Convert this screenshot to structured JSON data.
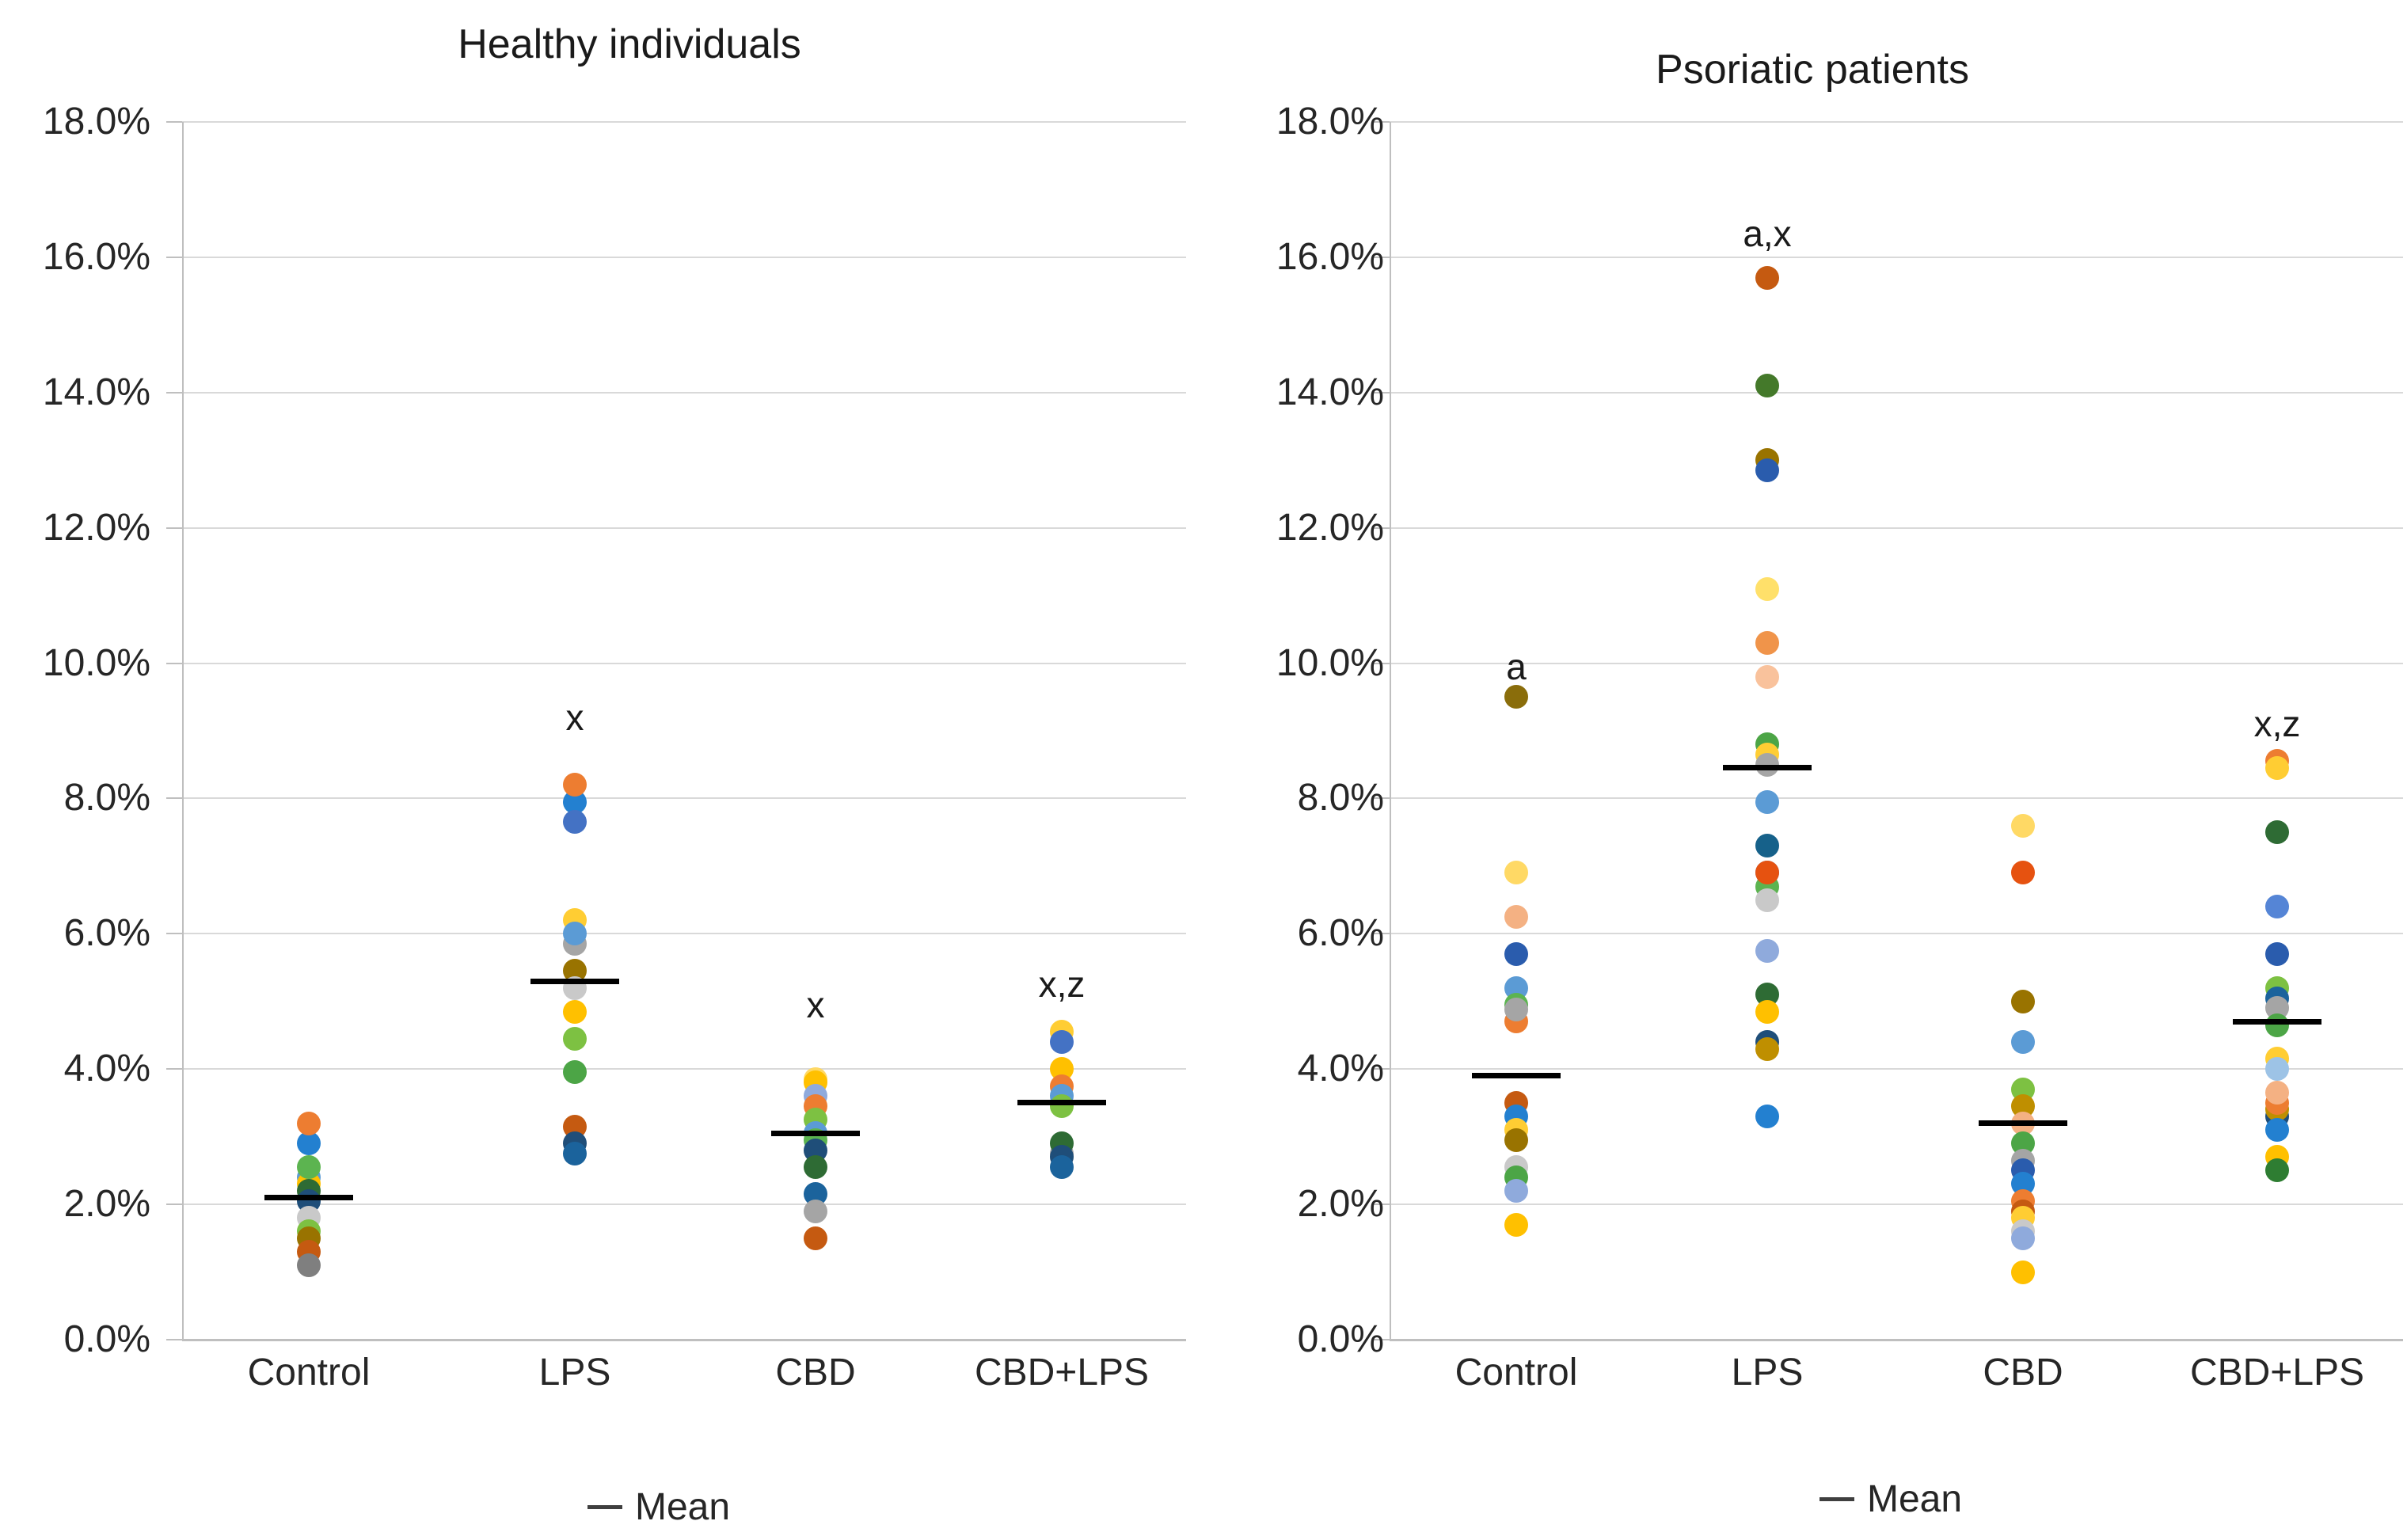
{
  "page": {
    "background": "#FFFFFF"
  },
  "colors": {
    "orange": "#ED7D31",
    "amber_orange": "#F0944A",
    "orange_red": "#E65210",
    "rust": "#C55A11",
    "salmon": "#F4B183",
    "light_salmon": "#F9C29C",
    "gold": "#FFC000",
    "light_gold": "#FFCD33",
    "light_yellow": "#FFD965",
    "pale_yellow": "#FFE06A",
    "olive": "#997300",
    "dark_gold": "#BF8F00",
    "brown_gold": "#8A6D0B",
    "bright_blue": "#2380D0",
    "light_blue": "#5B9BD5",
    "muted_blue": "#4472C4",
    "cornflower": "#5585D6",
    "royal_blue": "#2A5CAD",
    "navy": "#1F4E79",
    "steel_blue": "#1B639C",
    "teal_blue": "#16618A",
    "periwinkle": "#8FAADC",
    "pale_blue": "#9DC3E6",
    "green": "#5CB450",
    "green2": "#4CA546",
    "light_green": "#7DC142",
    "dark_green": "#2E6B34",
    "dark_green2": "#2E7D32",
    "forest": "#44792A",
    "gray": "#A5A5A5",
    "light_gray": "#C9C9C9",
    "dark_gray": "#7F7F7F"
  },
  "chart_data": [
    {
      "type": "scatter",
      "title": "Healthy individuals",
      "legend_label": "Mean",
      "xlabel": "",
      "ylabel": "",
      "ylim": [
        0,
        18
      ],
      "ytick_step": 2,
      "grid": true,
      "legend_position": "bottom",
      "ytick_labels": [
        "0.0%",
        "2.0%",
        "4.0%",
        "6.0%",
        "8.0%",
        "10.0%",
        "12.0%",
        "14.0%",
        "16.0%",
        "18.0%"
      ],
      "categories": [
        "Control",
        "LPS",
        "CBD",
        "CBD+LPS"
      ],
      "columns": [
        {
          "category": "Control",
          "mean": 2.1,
          "annotation": null,
          "annotation_v": null,
          "points": [
            {
              "v": 2.9,
              "c": "bright_blue"
            },
            {
              "v": 3.2,
              "c": "orange"
            },
            {
              "v": 2.4,
              "c": "light_blue"
            },
            {
              "v": 2.3,
              "c": "gold"
            },
            {
              "v": 2.55,
              "c": "green"
            },
            {
              "v": 2.2,
              "c": "dark_green"
            },
            {
              "v": 2.05,
              "c": "navy"
            },
            {
              "v": 1.8,
              "c": "light_gray"
            },
            {
              "v": 1.6,
              "c": "light_green"
            },
            {
              "v": 1.5,
              "c": "olive"
            },
            {
              "v": 1.3,
              "c": "rust"
            },
            {
              "v": 1.1,
              "c": "dark_gray"
            }
          ]
        },
        {
          "category": "LPS",
          "mean": 5.3,
          "annotation": "x",
          "annotation_v": 9.2,
          "points": [
            {
              "v": 7.95,
              "c": "bright_blue"
            },
            {
              "v": 8.2,
              "c": "orange"
            },
            {
              "v": 7.65,
              "c": "muted_blue"
            },
            {
              "v": 5.85,
              "c": "gray"
            },
            {
              "v": 6.2,
              "c": "light_gold"
            },
            {
              "v": 6.0,
              "c": "light_blue"
            },
            {
              "v": 5.45,
              "c": "olive"
            },
            {
              "v": 5.2,
              "c": "light_gray"
            },
            {
              "v": 4.85,
              "c": "gold"
            },
            {
              "v": 4.45,
              "c": "light_green"
            },
            {
              "v": 3.95,
              "c": "green2"
            },
            {
              "v": 3.15,
              "c": "rust"
            },
            {
              "v": 2.9,
              "c": "navy"
            },
            {
              "v": 2.75,
              "c": "steel_blue"
            }
          ]
        },
        {
          "category": "CBD",
          "mean": 3.05,
          "annotation": "x",
          "annotation_v": 4.95,
          "points": [
            {
              "v": 3.85,
              "c": "light_yellow"
            },
            {
              "v": 3.8,
              "c": "gold"
            },
            {
              "v": 3.6,
              "c": "periwinkle"
            },
            {
              "v": 3.45,
              "c": "orange"
            },
            {
              "v": 3.25,
              "c": "light_green"
            },
            {
              "v": 3.05,
              "c": "light_blue"
            },
            {
              "v": 2.95,
              "c": "green"
            },
            {
              "v": 2.8,
              "c": "navy"
            },
            {
              "v": 2.55,
              "c": "dark_green"
            },
            {
              "v": 2.15,
              "c": "steel_blue"
            },
            {
              "v": 1.9,
              "c": "gray"
            },
            {
              "v": 1.5,
              "c": "rust"
            }
          ]
        },
        {
          "category": "CBD+LPS",
          "mean": 3.5,
          "annotation": "x,z",
          "annotation_v": 5.25,
          "points": [
            {
              "v": 4.55,
              "c": "light_gold"
            },
            {
              "v": 4.4,
              "c": "muted_blue"
            },
            {
              "v": 4.0,
              "c": "gold"
            },
            {
              "v": 3.75,
              "c": "orange"
            },
            {
              "v": 3.6,
              "c": "light_blue"
            },
            {
              "v": 3.45,
              "c": "light_green"
            },
            {
              "v": 2.75,
              "c": "gray"
            },
            {
              "v": 2.9,
              "c": "dark_green"
            },
            {
              "v": 2.7,
              "c": "navy"
            },
            {
              "v": 2.55,
              "c": "steel_blue"
            }
          ]
        }
      ]
    },
    {
      "type": "scatter",
      "title": "Psoriatic patients",
      "legend_label": "Mean",
      "xlabel": "",
      "ylabel": "",
      "ylim": [
        0,
        18
      ],
      "ytick_step": 2,
      "grid": true,
      "legend_position": "bottom",
      "ytick_labels": [
        "0.0%",
        "2.0%",
        "4.0%",
        "6.0%",
        "8.0%",
        "10.0%",
        "12.0%",
        "14.0%",
        "16.0%",
        "18.0%"
      ],
      "categories": [
        "Control",
        "LPS",
        "CBD",
        "CBD+LPS"
      ],
      "columns": [
        {
          "category": "Control",
          "mean": 3.9,
          "annotation": "a",
          "annotation_v": 9.95,
          "points": [
            {
              "v": 9.5,
              "c": "brown_gold"
            },
            {
              "v": 6.9,
              "c": "light_yellow"
            },
            {
              "v": 6.25,
              "c": "salmon"
            },
            {
              "v": 5.7,
              "c": "royal_blue"
            },
            {
              "v": 5.2,
              "c": "light_blue"
            },
            {
              "v": 4.95,
              "c": "green"
            },
            {
              "v": 4.7,
              "c": "orange"
            },
            {
              "v": 4.88,
              "c": "gray"
            },
            {
              "v": 3.5,
              "c": "rust"
            },
            {
              "v": 3.3,
              "c": "bright_blue"
            },
            {
              "v": 3.1,
              "c": "light_gold"
            },
            {
              "v": 2.95,
              "c": "olive"
            },
            {
              "v": 2.55,
              "c": "light_gray"
            },
            {
              "v": 2.4,
              "c": "green2"
            },
            {
              "v": 2.2,
              "c": "periwinkle"
            },
            {
              "v": 1.7,
              "c": "gold"
            }
          ]
        },
        {
          "category": "LPS",
          "mean": 8.45,
          "annotation": "a,x",
          "annotation_v": 16.35,
          "points": [
            {
              "v": 15.7,
              "c": "rust"
            },
            {
              "v": 14.1,
              "c": "forest"
            },
            {
              "v": 13.0,
              "c": "olive"
            },
            {
              "v": 12.85,
              "c": "royal_blue"
            },
            {
              "v": 11.1,
              "c": "pale_yellow"
            },
            {
              "v": 10.3,
              "c": "amber_orange"
            },
            {
              "v": 9.8,
              "c": "light_salmon"
            },
            {
              "v": 8.8,
              "c": "green2"
            },
            {
              "v": 8.65,
              "c": "light_gold"
            },
            {
              "v": 8.5,
              "c": "gray"
            },
            {
              "v": 7.95,
              "c": "light_blue"
            },
            {
              "v": 7.3,
              "c": "teal_blue"
            },
            {
              "v": 6.9,
              "c": "muted_blue"
            },
            {
              "v": 6.7,
              "c": "green"
            },
            {
              "v": 6.9,
              "c": "orange_red"
            },
            {
              "v": 6.5,
              "c": "light_gray"
            },
            {
              "v": 5.75,
              "c": "periwinkle"
            },
            {
              "v": 5.1,
              "c": "dark_green"
            },
            {
              "v": 4.85,
              "c": "gold"
            },
            {
              "v": 4.4,
              "c": "navy"
            },
            {
              "v": 4.3,
              "c": "dark_gold"
            },
            {
              "v": 3.3,
              "c": "bright_blue"
            }
          ]
        },
        {
          "category": "CBD",
          "mean": 3.2,
          "annotation": null,
          "annotation_v": null,
          "points": [
            {
              "v": 7.6,
              "c": "light_yellow"
            },
            {
              "v": 6.9,
              "c": "orange_red"
            },
            {
              "v": 5.0,
              "c": "olive"
            },
            {
              "v": 4.4,
              "c": "light_blue"
            },
            {
              "v": 3.7,
              "c": "light_green"
            },
            {
              "v": 3.45,
              "c": "dark_gold"
            },
            {
              "v": 3.2,
              "c": "salmon"
            },
            {
              "v": 2.9,
              "c": "green2"
            },
            {
              "v": 2.65,
              "c": "gray"
            },
            {
              "v": 2.5,
              "c": "royal_blue"
            },
            {
              "v": 2.3,
              "c": "bright_blue"
            },
            {
              "v": 2.05,
              "c": "orange"
            },
            {
              "v": 1.9,
              "c": "rust"
            },
            {
              "v": 1.8,
              "c": "light_gold"
            },
            {
              "v": 1.6,
              "c": "light_gray"
            },
            {
              "v": 1.5,
              "c": "periwinkle"
            },
            {
              "v": 1.0,
              "c": "gold"
            }
          ]
        },
        {
          "category": "CBD+LPS",
          "mean": 4.7,
          "annotation": "x,z",
          "annotation_v": 9.1,
          "points": [
            {
              "v": 8.55,
              "c": "orange"
            },
            {
              "v": 8.45,
              "c": "light_gold"
            },
            {
              "v": 7.5,
              "c": "dark_green"
            },
            {
              "v": 6.4,
              "c": "cornflower"
            },
            {
              "v": 5.7,
              "c": "royal_blue"
            },
            {
              "v": 5.2,
              "c": "light_green"
            },
            {
              "v": 5.05,
              "c": "steel_blue"
            },
            {
              "v": 4.9,
              "c": "gray"
            },
            {
              "v": 4.65,
              "c": "green2"
            },
            {
              "v": 4.15,
              "c": "light_gold"
            },
            {
              "v": 4.0,
              "c": "pale_blue"
            },
            {
              "v": 3.3,
              "c": "navy"
            },
            {
              "v": 3.4,
              "c": "dark_gold"
            },
            {
              "v": 3.5,
              "c": "orange"
            },
            {
              "v": 3.65,
              "c": "salmon"
            },
            {
              "v": 3.1,
              "c": "bright_blue"
            },
            {
              "v": 2.7,
              "c": "gold"
            },
            {
              "v": 2.5,
              "c": "dark_green2"
            }
          ]
        }
      ]
    }
  ]
}
